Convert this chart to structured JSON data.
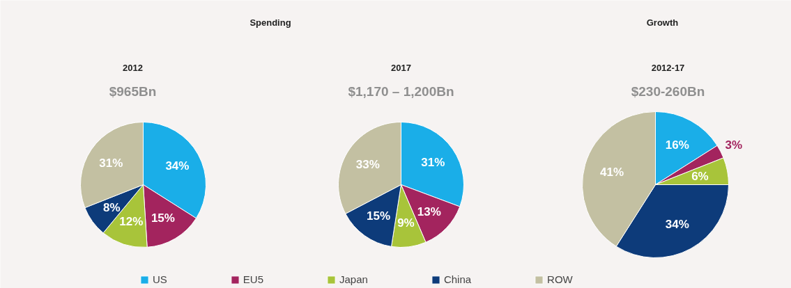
{
  "chart_data": [
    {
      "type": "pie",
      "title": "2012",
      "subtitle": "$965Bn",
      "annotations": [
        "Spending"
      ],
      "categories": [
        "US",
        "EU5",
        "Japan",
        "China",
        "ROW"
      ],
      "values": [
        34,
        15,
        12,
        8,
        31
      ],
      "colors": [
        "#1aaee8",
        "#a3245e",
        "#a8c43a",
        "#0d3b7a",
        "#c3c0a2"
      ],
      "value_labels": [
        "34%",
        "15%",
        "12%",
        "8%",
        "31%"
      ],
      "legend": "bottom"
    },
    {
      "type": "pie",
      "title": "2017",
      "subtitle": "$1,170 – 1,200Bn",
      "categories": [
        null,
        null,
        null,
        null,
        null
      ],
      "values": [
        31,
        13,
        9,
        15,
        33
      ],
      "colors": [
        "#1aaee8",
        "#a3245e",
        "#a8c43a",
        "#0d3b7a",
        "#c3c0a2"
      ],
      "value_labels": [
        "31%",
        "13%",
        "9%",
        "15%",
        "33%"
      ]
    },
    {
      "type": "pie",
      "title": "2012-17",
      "subtitle": "$230-260Bn",
      "annotations": [
        "Growth"
      ],
      "categories": [
        null,
        null,
        null,
        null,
        null
      ],
      "values": [
        16,
        3,
        6,
        34,
        41
      ],
      "colors": [
        "#1aaee8",
        "#a3245e",
        "#a8c43a",
        "#0d3b7a",
        "#c3c0a2"
      ],
      "value_labels": [
        "16%",
        "3%",
        "6%",
        "34%",
        "41%"
      ]
    }
  ]
}
